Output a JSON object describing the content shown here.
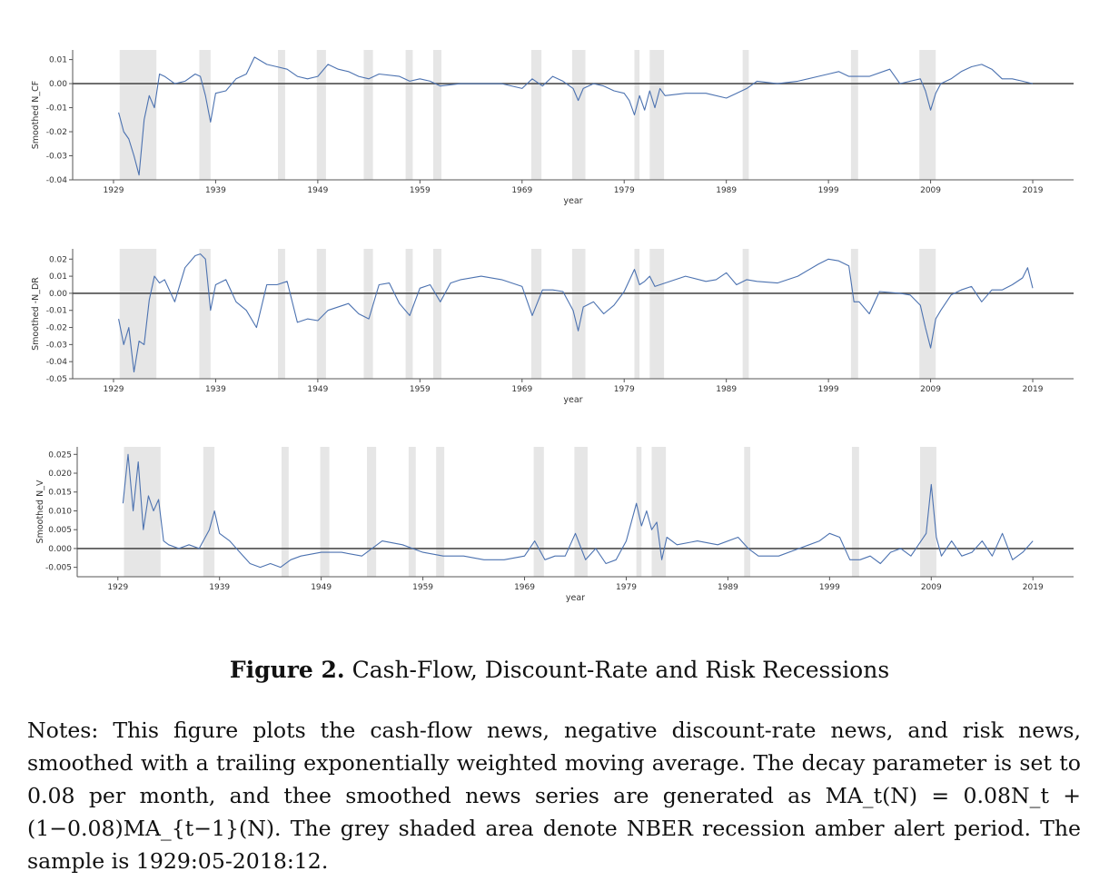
{
  "figure": {
    "caption_label": "Figure 2.",
    "caption_text": "Cash-Flow, Discount-Rate and Risk Recessions",
    "notes": "Notes: This figure plots the cash-flow news, negative discount-rate news, and risk news, smoothed with a trailing exponentially weighted moving average. The decay parameter is set to 0.08 per month, and thee smoothed news series are generated as MA_t(N) = 0.08N_t + (1−0.08)MA_{t−1}(N). The grey shaded area denote NBER recession amber alert period. The sample is 1929:05-2018:12."
  },
  "colors": {
    "series": "#4c72b0",
    "recession": "#e6e6e6",
    "zero_line": "#4d4d4d",
    "axis": "#555555"
  },
  "chart_data": [
    {
      "type": "line",
      "ylabel": "Smoothed N_CF",
      "xlabel": "year",
      "xlim": [
        1925,
        2023
      ],
      "ylim": [
        -0.04,
        0.014
      ],
      "x_ticks": [
        "1929",
        "1939",
        "1949",
        "1959",
        "1969",
        "1979",
        "1989",
        "1999",
        "2009",
        "2019"
      ],
      "y_ticks": [
        "0.01",
        "0.00",
        "-0.01",
        "-0.02",
        "-0.03",
        "-0.04"
      ],
      "y_tick_values": [
        0.01,
        0.0,
        -0.01,
        -0.02,
        -0.03,
        -0.04
      ],
      "recessions": [
        [
          1929.6,
          1933.2
        ],
        [
          1937.4,
          1938.5
        ],
        [
          1945.1,
          1945.8
        ],
        [
          1948.9,
          1949.8
        ],
        [
          1953.5,
          1954.4
        ],
        [
          1957.6,
          1958.3
        ],
        [
          1960.3,
          1961.1
        ],
        [
          1969.9,
          1970.9
        ],
        [
          1973.9,
          1975.2
        ],
        [
          1980.0,
          1980.5
        ],
        [
          1981.5,
          1982.9
        ],
        [
          1990.6,
          1991.2
        ],
        [
          2001.2,
          2001.9
        ],
        [
          2007.9,
          2009.5
        ]
      ],
      "series": [
        {
          "x": [
            1929.5,
            1930.0,
            1930.5,
            1931.0,
            1931.5,
            1932.0,
            1932.5,
            1933.0,
            1933.5,
            1934.0,
            1935.0,
            1936.0,
            1937.0,
            1937.5,
            1938.0,
            1938.5,
            1939.0,
            1940.0,
            1941.0,
            1942.0,
            1942.8,
            1944.0,
            1945.0,
            1946.0,
            1947.0,
            1948.0,
            1949.0,
            1950.0,
            1951.0,
            1952.0,
            1953.0,
            1954.0,
            1955.0,
            1957.0,
            1958.0,
            1959.0,
            1960.0,
            1961.0,
            1963.0,
            1965.0,
            1967.0,
            1969.0,
            1970.0,
            1971.0,
            1972.0,
            1973.0,
            1974.0,
            1974.5,
            1975.0,
            1976.0,
            1977.0,
            1978.0,
            1979.0,
            1979.5,
            1980.0,
            1980.5,
            1981.0,
            1981.5,
            1982.0,
            1982.5,
            1983.0,
            1985.0,
            1987.0,
            1989.0,
            1990.0,
            1991.0,
            1992.0,
            1994.0,
            1996.0,
            1998.0,
            1999.0,
            2000.0,
            2001.0,
            2002.0,
            2003.0,
            2005.0,
            2006.0,
            2007.0,
            2008.0,
            2008.5,
            2009.0,
            2009.5,
            2010.0,
            2011.0,
            2012.0,
            2013.0,
            2014.0,
            2015.0,
            2016.0,
            2017.0,
            2018.0,
            2019.0
          ],
          "y": [
            -0.012,
            -0.02,
            -0.023,
            -0.03,
            -0.038,
            -0.015,
            -0.005,
            -0.01,
            0.004,
            0.003,
            0.0,
            0.001,
            0.004,
            0.003,
            -0.005,
            -0.016,
            -0.004,
            -0.003,
            0.002,
            0.004,
            0.011,
            0.008,
            0.007,
            0.006,
            0.003,
            0.002,
            0.003,
            0.008,
            0.006,
            0.005,
            0.003,
            0.002,
            0.004,
            0.003,
            0.001,
            0.002,
            0.001,
            -0.001,
            0.0,
            0.0,
            0.0,
            -0.002,
            0.002,
            -0.001,
            0.003,
            0.001,
            -0.002,
            -0.007,
            -0.002,
            0.0,
            -0.001,
            -0.003,
            -0.004,
            -0.007,
            -0.013,
            -0.005,
            -0.011,
            -0.003,
            -0.01,
            -0.002,
            -0.005,
            -0.004,
            -0.004,
            -0.006,
            -0.004,
            -0.002,
            0.001,
            0.0,
            0.001,
            0.003,
            0.004,
            0.005,
            0.003,
            0.003,
            0.003,
            0.006,
            0.0,
            0.001,
            0.002,
            -0.003,
            -0.011,
            -0.004,
            0.0,
            0.002,
            0.005,
            0.007,
            0.008,
            0.006,
            0.002,
            0.002,
            0.001,
            0.0
          ]
        }
      ]
    },
    {
      "type": "line",
      "ylabel": "Smoothed -N_DR",
      "xlabel": "year",
      "xlim": [
        1925,
        2023
      ],
      "ylim": [
        -0.05,
        0.026
      ],
      "x_ticks": [
        "1929",
        "1939",
        "1949",
        "1959",
        "1969",
        "1979",
        "1989",
        "1999",
        "2009",
        "2019"
      ],
      "y_ticks": [
        "0.02",
        "0.01",
        "0.00",
        "-0.01",
        "-0.02",
        "-0.03",
        "-0.04",
        "-0.05"
      ],
      "y_tick_values": [
        0.02,
        0.01,
        0.0,
        -0.01,
        -0.02,
        -0.03,
        -0.04,
        -0.05
      ],
      "recessions": [
        [
          1929.6,
          1933.2
        ],
        [
          1937.4,
          1938.5
        ],
        [
          1945.1,
          1945.8
        ],
        [
          1948.9,
          1949.8
        ],
        [
          1953.5,
          1954.4
        ],
        [
          1957.6,
          1958.3
        ],
        [
          1960.3,
          1961.1
        ],
        [
          1969.9,
          1970.9
        ],
        [
          1973.9,
          1975.2
        ],
        [
          1980.0,
          1980.5
        ],
        [
          1981.5,
          1982.9
        ],
        [
          1990.6,
          1991.2
        ],
        [
          2001.2,
          2001.9
        ],
        [
          2007.9,
          2009.5
        ]
      ],
      "series": [
        {
          "x": [
            1929.5,
            1930.0,
            1930.5,
            1931.0,
            1931.5,
            1932.0,
            1932.5,
            1933.0,
            1933.5,
            1934.0,
            1935.0,
            1936.0,
            1937.0,
            1937.5,
            1938.0,
            1938.5,
            1939.0,
            1940.0,
            1941.0,
            1942.0,
            1943.0,
            1944.0,
            1945.0,
            1946.0,
            1947.0,
            1948.0,
            1949.0,
            1950.0,
            1952.0,
            1953.0,
            1954.0,
            1955.0,
            1956.0,
            1957.0,
            1958.0,
            1959.0,
            1960.0,
            1961.0,
            1962.0,
            1963.0,
            1965.0,
            1967.0,
            1969.0,
            1970.0,
            1971.0,
            1972.0,
            1973.0,
            1974.0,
            1974.5,
            1975.0,
            1976.0,
            1977.0,
            1978.0,
            1979.0,
            1980.0,
            1980.5,
            1981.0,
            1981.5,
            1982.0,
            1983.0,
            1985.0,
            1987.0,
            1988.0,
            1989.0,
            1990.0,
            1991.0,
            1992.0,
            1994.0,
            1996.0,
            1998.0,
            1999.0,
            2000.0,
            2001.0,
            2001.5,
            2002.0,
            2003.0,
            2004.0,
            2006.0,
            2007.0,
            2008.0,
            2008.5,
            2009.0,
            2009.5,
            2010.0,
            2011.0,
            2012.0,
            2013.0,
            2014.0,
            2015.0,
            2016.0,
            2017.0,
            2018.0,
            2018.5,
            2019.0
          ],
          "y": [
            -0.015,
            -0.03,
            -0.02,
            -0.046,
            -0.028,
            -0.03,
            -0.004,
            0.01,
            0.006,
            0.008,
            -0.005,
            0.015,
            0.022,
            0.023,
            0.02,
            -0.01,
            0.005,
            0.008,
            -0.005,
            -0.01,
            -0.02,
            0.005,
            0.005,
            0.007,
            -0.017,
            -0.015,
            -0.016,
            -0.01,
            -0.006,
            -0.012,
            -0.015,
            0.005,
            0.006,
            -0.006,
            -0.013,
            0.003,
            0.005,
            -0.005,
            0.006,
            0.008,
            0.01,
            0.008,
            0.004,
            -0.013,
            0.002,
            0.002,
            0.001,
            -0.01,
            -0.022,
            -0.008,
            -0.005,
            -0.012,
            -0.007,
            0.001,
            0.014,
            0.005,
            0.007,
            0.01,
            0.004,
            0.006,
            0.01,
            0.007,
            0.008,
            0.012,
            0.005,
            0.008,
            0.007,
            0.006,
            0.01,
            0.017,
            0.02,
            0.019,
            0.016,
            -0.005,
            -0.005,
            -0.012,
            0.001,
            0.0,
            -0.001,
            -0.007,
            -0.02,
            -0.032,
            -0.015,
            -0.01,
            -0.001,
            0.002,
            0.004,
            -0.005,
            0.002,
            0.002,
            0.005,
            0.009,
            0.015,
            0.003
          ]
        }
      ]
    },
    {
      "type": "line",
      "ylabel": "Smoothed N_V",
      "xlabel": "year",
      "xlim": [
        1925,
        2023
      ],
      "ylim": [
        -0.0075,
        0.027
      ],
      "x_ticks": [
        "1929",
        "1939",
        "1949",
        "1959",
        "1969",
        "1979",
        "1989",
        "1999",
        "2009",
        "2019"
      ],
      "y_ticks": [
        "0.025",
        "0.020",
        "0.015",
        "0.010",
        "0.005",
        "0.000",
        "-0.005"
      ],
      "y_tick_values": [
        0.025,
        0.02,
        0.015,
        0.01,
        0.005,
        0.0,
        -0.005
      ],
      "recessions": [
        [
          1929.6,
          1933.2
        ],
        [
          1937.4,
          1938.5
        ],
        [
          1945.1,
          1945.8
        ],
        [
          1948.9,
          1949.8
        ],
        [
          1953.5,
          1954.4
        ],
        [
          1957.6,
          1958.3
        ],
        [
          1960.3,
          1961.1
        ],
        [
          1969.9,
          1970.9
        ],
        [
          1973.9,
          1975.2
        ],
        [
          1980.0,
          1980.5
        ],
        [
          1981.5,
          1982.9
        ],
        [
          1990.6,
          1991.2
        ],
        [
          2001.2,
          2001.9
        ],
        [
          2007.9,
          2009.5
        ]
      ],
      "series": [
        {
          "x": [
            1929.5,
            1930.0,
            1930.5,
            1931.0,
            1931.5,
            1932.0,
            1932.5,
            1933.0,
            1933.5,
            1934.0,
            1935.0,
            1936.0,
            1937.0,
            1938.0,
            1938.5,
            1939.0,
            1940.0,
            1941.0,
            1942.0,
            1943.0,
            1944.0,
            1945.0,
            1946.0,
            1947.0,
            1949.0,
            1951.0,
            1953.0,
            1955.0,
            1957.0,
            1959.0,
            1961.0,
            1963.0,
            1965.0,
            1967.0,
            1969.0,
            1970.0,
            1971.0,
            1972.0,
            1973.0,
            1974.0,
            1975.0,
            1976.0,
            1977.0,
            1978.0,
            1979.0,
            1980.0,
            1980.5,
            1981.0,
            1981.5,
            1982.0,
            1982.5,
            1983.0,
            1984.0,
            1986.0,
            1988.0,
            1990.0,
            1991.0,
            1992.0,
            1994.0,
            1996.0,
            1998.0,
            1999.0,
            2000.0,
            2001.0,
            2002.0,
            2003.0,
            2004.0,
            2005.0,
            2006.0,
            2007.0,
            2008.0,
            2008.5,
            2009.0,
            2009.5,
            2010.0,
            2011.0,
            2012.0,
            2013.0,
            2014.0,
            2015.0,
            2016.0,
            2017.0,
            2018.0,
            2019.0
          ],
          "y": [
            0.012,
            0.025,
            0.01,
            0.023,
            0.005,
            0.014,
            0.01,
            0.013,
            0.002,
            0.001,
            0.0,
            0.001,
            0.0,
            0.005,
            0.01,
            0.004,
            0.002,
            -0.001,
            -0.004,
            -0.005,
            -0.004,
            -0.005,
            -0.003,
            -0.002,
            -0.001,
            -0.001,
            -0.002,
            0.002,
            0.001,
            -0.001,
            -0.002,
            -0.002,
            -0.003,
            -0.003,
            -0.002,
            0.002,
            -0.003,
            -0.002,
            -0.002,
            0.004,
            -0.003,
            0.0,
            -0.004,
            -0.003,
            0.002,
            0.012,
            0.006,
            0.01,
            0.005,
            0.007,
            -0.003,
            0.003,
            0.001,
            0.002,
            0.001,
            0.003,
            0.0,
            -0.002,
            -0.002,
            0.0,
            0.002,
            0.004,
            0.003,
            -0.003,
            -0.003,
            -0.002,
            -0.004,
            -0.001,
            0.0,
            -0.002,
            0.002,
            0.004,
            0.017,
            0.003,
            -0.002,
            0.002,
            -0.002,
            -0.001,
            0.002,
            -0.002,
            0.004,
            -0.003,
            -0.001,
            0.002
          ]
        }
      ]
    }
  ]
}
